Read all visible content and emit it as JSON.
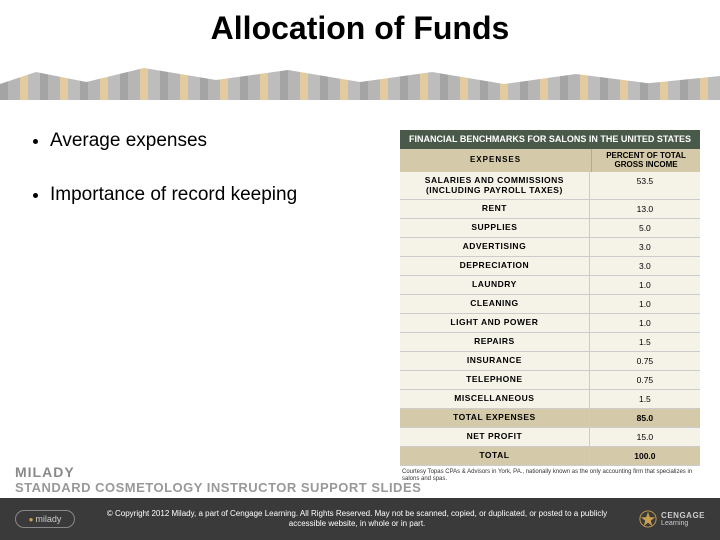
{
  "title": "Allocation of Funds",
  "bullets": [
    "Average expenses",
    "Importance of record keeping"
  ],
  "table": {
    "title": "FINANCIAL BENCHMARKS FOR SALONS IN THE UNITED STATES",
    "header_left": "EXPENSES",
    "header_right": "PERCENT OF TOTAL GROSS INCOME",
    "rows": [
      {
        "label": "SALARIES AND COMMISSIONS (INCLUDING PAYROLL TAXES)",
        "value": "53.5"
      },
      {
        "label": "RENT",
        "value": "13.0"
      },
      {
        "label": "SUPPLIES",
        "value": "5.0"
      },
      {
        "label": "ADVERTISING",
        "value": "3.0"
      },
      {
        "label": "DEPRECIATION",
        "value": "3.0"
      },
      {
        "label": "LAUNDRY",
        "value": "1.0"
      },
      {
        "label": "CLEANING",
        "value": "1.0"
      },
      {
        "label": "LIGHT AND POWER",
        "value": "1.0"
      },
      {
        "label": "REPAIRS",
        "value": "1.5"
      },
      {
        "label": "INSURANCE",
        "value": "0.75"
      },
      {
        "label": "TELEPHONE",
        "value": "0.75"
      },
      {
        "label": "MISCELLANEOUS",
        "value": "1.5"
      },
      {
        "label": "TOTAL EXPENSES",
        "value": "85.0",
        "total": true
      },
      {
        "label": "NET PROFIT",
        "value": "15.0"
      },
      {
        "label": "TOTAL",
        "value": "100.0",
        "total": true
      }
    ],
    "caption": "Courtesy Topas CPAs & Advisors in York, PA., nationally known as the only accounting firm that specializes in salons and spas."
  },
  "brand": {
    "line1": "MILADY",
    "line2": "STANDARD COSMETOLOGY INSTRUCTOR SUPPORT SLIDES"
  },
  "footer": {
    "logo": "milady",
    "copyright": "© Copyright 2012 Milady, a part of Cengage Learning. All Rights Reserved. May not be scanned, copied, or duplicated, or posted to a publicly accessible website, in whole or in part.",
    "cengage1": "CENGAGE",
    "cengage2": "Learning"
  },
  "colors": {
    "table_title_bg": "#4a5a4a",
    "table_head_bg": "#d4c9a8",
    "table_row_bg": "#f5f2e8",
    "footer_bg": "#3a3a3a",
    "accent": "#c8a050"
  }
}
